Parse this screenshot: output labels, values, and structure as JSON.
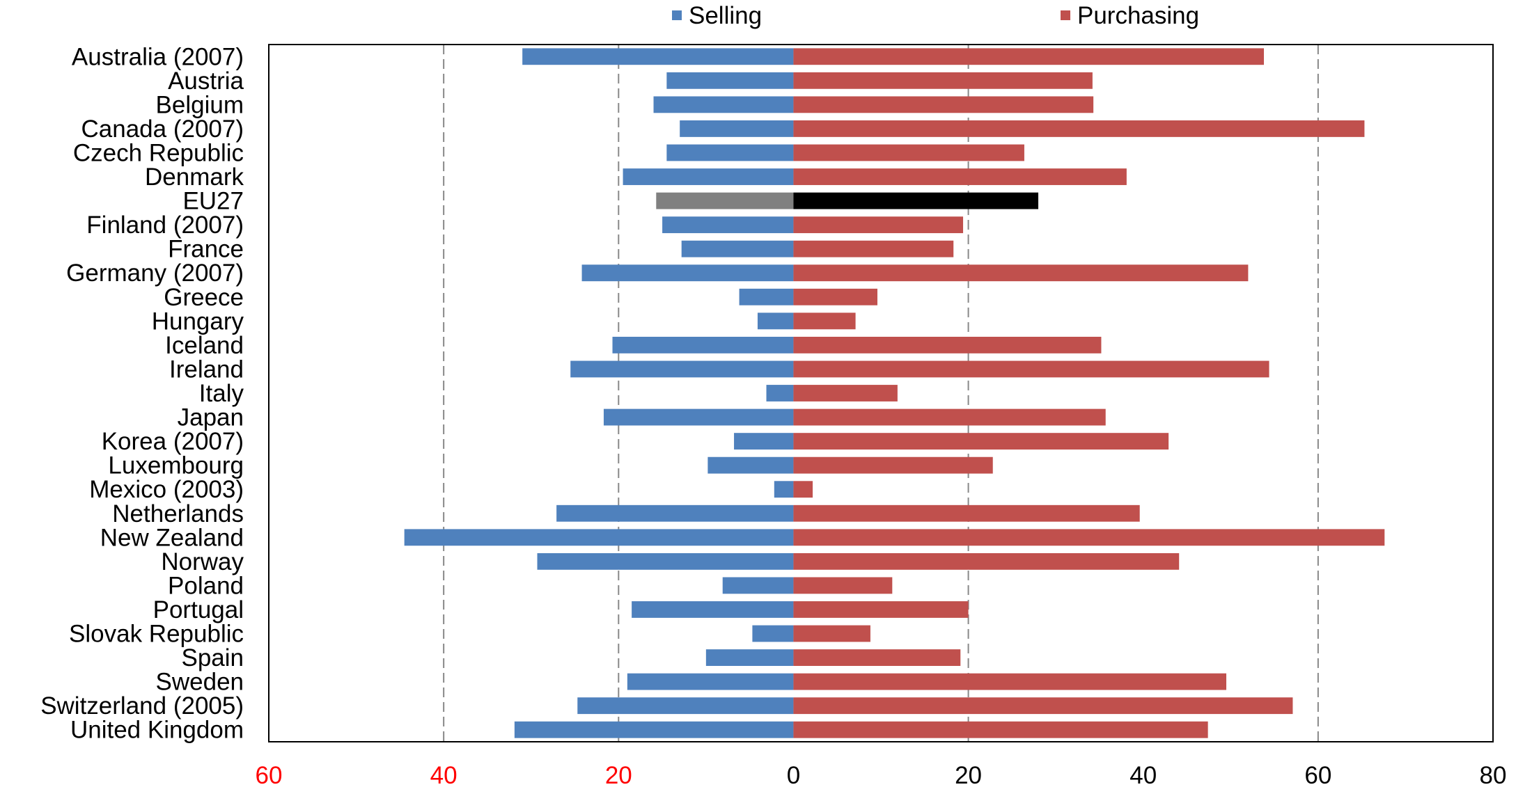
{
  "chart_data": {
    "type": "bar",
    "orientation": "horizontal-diverging",
    "categories": [
      "Australia (2007)",
      "Austria",
      "Belgium",
      "Canada (2007)",
      "Czech Republic",
      "Denmark",
      "EU27",
      "Finland (2007)",
      "France",
      "Germany (2007)",
      "Greece",
      "Hungary",
      "Iceland",
      "Ireland",
      "Italy",
      "Japan",
      "Korea (2007)",
      "Luxembourg",
      "Mexico (2003)",
      "Netherlands",
      "New Zealand",
      "Norway",
      "Poland",
      "Portugal",
      "Slovak Republic",
      "Spain",
      "Sweden",
      "Switzerland (2005)",
      "United Kingdom"
    ],
    "series": [
      {
        "name": "Selling",
        "color": "#4f81bd",
        "direction": "left",
        "values": [
          31,
          14.5,
          16,
          13,
          14.5,
          19.5,
          15.7,
          15,
          12.8,
          24.2,
          6.2,
          4.1,
          20.7,
          25.5,
          3.1,
          21.7,
          6.8,
          9.8,
          2.2,
          27.1,
          44.5,
          29.3,
          8.1,
          18.5,
          4.7,
          10,
          19,
          24.7,
          31.9
        ]
      },
      {
        "name": "Purchasing",
        "color": "#c0504d",
        "direction": "right",
        "values": [
          53.8,
          34.2,
          34.3,
          65.3,
          26.4,
          38.1,
          28,
          19.4,
          18.3,
          52,
          9.6,
          7.1,
          35.2,
          54.4,
          11.9,
          35.7,
          42.9,
          22.8,
          2.2,
          39.6,
          67.6,
          44.1,
          11.3,
          20,
          8.8,
          19.1,
          49.5,
          57.1,
          47.4
        ]
      }
    ],
    "highlight": {
      "category": "EU27",
      "selling_color": "#808080",
      "purchasing_color": "#000000"
    },
    "xlim": [
      -60,
      80
    ],
    "xticks": [
      {
        "value": -60,
        "label": "60",
        "color": "#ff0000"
      },
      {
        "value": -40,
        "label": "40",
        "color": "#ff0000"
      },
      {
        "value": -20,
        "label": "20",
        "color": "#ff0000"
      },
      {
        "value": 0,
        "label": "0",
        "color": "#000000"
      },
      {
        "value": 20,
        "label": "20",
        "color": "#000000"
      },
      {
        "value": 40,
        "label": "40",
        "color": "#000000"
      },
      {
        "value": 60,
        "label": "60",
        "color": "#000000"
      },
      {
        "value": 80,
        "label": "80",
        "color": "#000000"
      }
    ],
    "gridlines": {
      "on": true,
      "style": "dashed",
      "values": [
        -40,
        -20,
        20,
        60
      ]
    },
    "legend": {
      "placement": "top"
    },
    "title": "",
    "xlabel": "",
    "ylabel": ""
  }
}
